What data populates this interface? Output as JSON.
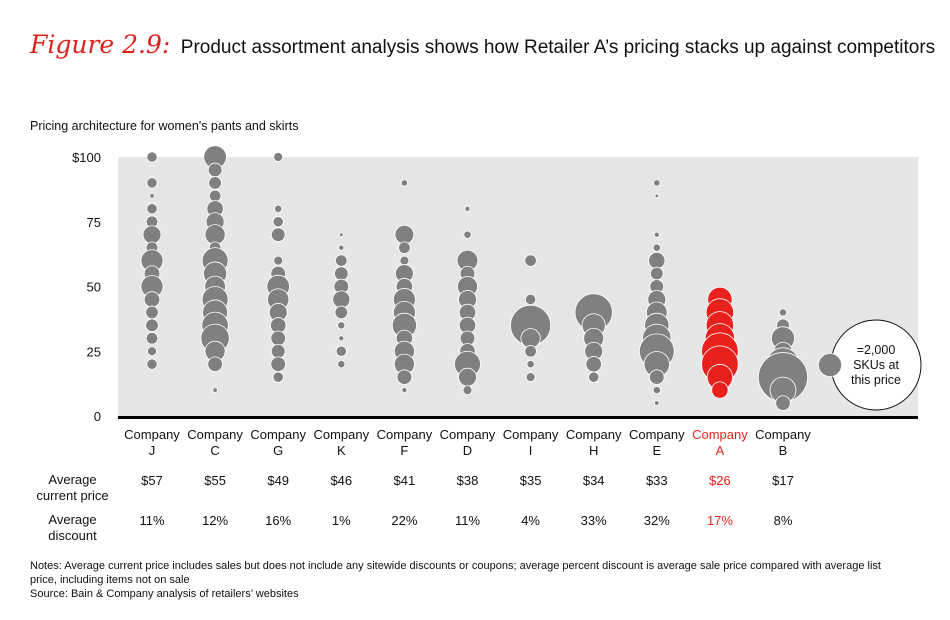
{
  "figure": {
    "label": "Figure 2.9:",
    "title": "Product assortment analysis shows how Retailer A’s pricing stacks up against competitors",
    "subtitle": "Pricing architecture for women's pants and skirts"
  },
  "rows": {
    "price_label": [
      "Average",
      "current price"
    ],
    "discount_label": [
      "Average",
      "discount"
    ]
  },
  "legend": {
    "lines": [
      "=2,000",
      "SKUs at",
      "this price"
    ]
  },
  "notes": {
    "line1": "Notes: Average current price includes sales but does not include any sitewide discounts or coupons; average percent discount is average sale price compared with average list",
    "line2": "price, including items not on sale",
    "source": "Source: Bain & Company analysis of retailers’ websites"
  },
  "colors": {
    "bubble": "#808080",
    "highlight": "#e8211c",
    "plot_bg": "#e6e6e6",
    "axis": "#000000"
  },
  "chart_data": {
    "type": "bubble",
    "y_ticks": [
      "$100",
      "75",
      "50",
      "25",
      "0"
    ],
    "y_tick_values": [
      100,
      75,
      50,
      25,
      0
    ],
    "ylim": [
      0,
      100
    ],
    "size_unit": "SKUs",
    "legend_bubble_skus": 2000,
    "companies": [
      {
        "name": [
          "Company",
          "J"
        ],
        "avg_price": "$57",
        "avg_discount": "11%",
        "highlight": false,
        "bubbles": [
          [
            100,
            400
          ],
          [
            90,
            400
          ],
          [
            85,
            80
          ],
          [
            80,
            400
          ],
          [
            75,
            500
          ],
          [
            70,
            1200
          ],
          [
            65,
            500
          ],
          [
            60,
            1800
          ],
          [
            55,
            900
          ],
          [
            50,
            1800
          ],
          [
            45,
            900
          ],
          [
            40,
            600
          ],
          [
            35,
            600
          ],
          [
            30,
            500
          ],
          [
            25,
            300
          ],
          [
            20,
            400
          ]
        ]
      },
      {
        "name": [
          "Company",
          "C"
        ],
        "avg_price": "$55",
        "avg_discount": "12%",
        "highlight": false,
        "bubbles": [
          [
            100,
            1900
          ],
          [
            95,
            700
          ],
          [
            90,
            600
          ],
          [
            85,
            500
          ],
          [
            80,
            1000
          ],
          [
            75,
            1200
          ],
          [
            70,
            1500
          ],
          [
            65,
            500
          ],
          [
            60,
            2500
          ],
          [
            55,
            2000
          ],
          [
            50,
            1600
          ],
          [
            45,
            2500
          ],
          [
            40,
            2300
          ],
          [
            35,
            2600
          ],
          [
            30,
            3000
          ],
          [
            25,
            1500
          ],
          [
            20,
            800
          ],
          [
            10,
            80
          ]
        ]
      },
      {
        "name": [
          "Company",
          "G"
        ],
        "avg_price": "$49",
        "avg_discount": "16%",
        "highlight": false,
        "bubbles": [
          [
            100,
            300
          ],
          [
            80,
            200
          ],
          [
            75,
            400
          ],
          [
            70,
            700
          ],
          [
            60,
            300
          ],
          [
            55,
            800
          ],
          [
            50,
            1900
          ],
          [
            45,
            1700
          ],
          [
            40,
            1200
          ],
          [
            35,
            900
          ],
          [
            30,
            800
          ],
          [
            25,
            700
          ],
          [
            20,
            800
          ],
          [
            15,
            400
          ]
        ]
      },
      {
        "name": [
          "Company",
          "K"
        ],
        "avg_price": "$46",
        "avg_discount": "1%",
        "highlight": false,
        "bubbles": [
          [
            70,
            50
          ],
          [
            65,
            100
          ],
          [
            60,
            500
          ],
          [
            55,
            700
          ],
          [
            50,
            800
          ],
          [
            45,
            1100
          ],
          [
            40,
            600
          ],
          [
            35,
            200
          ],
          [
            30,
            100
          ],
          [
            25,
            400
          ],
          [
            20,
            200
          ]
        ]
      },
      {
        "name": [
          "Company",
          "F"
        ],
        "avg_price": "$41",
        "avg_discount": "22%",
        "highlight": false,
        "bubbles": [
          [
            90,
            150
          ],
          [
            70,
            1300
          ],
          [
            65,
            500
          ],
          [
            60,
            300
          ],
          [
            55,
            1200
          ],
          [
            50,
            1000
          ],
          [
            45,
            1800
          ],
          [
            40,
            1800
          ],
          [
            35,
            2200
          ],
          [
            30,
            1000
          ],
          [
            25,
            1500
          ],
          [
            20,
            1500
          ],
          [
            15,
            800
          ],
          [
            10,
            100
          ]
        ]
      },
      {
        "name": [
          "Company",
          "D"
        ],
        "avg_price": "$38",
        "avg_discount": "11%",
        "highlight": false,
        "bubbles": [
          [
            80,
            100
          ],
          [
            70,
            200
          ],
          [
            60,
            1600
          ],
          [
            55,
            800
          ],
          [
            50,
            1500
          ],
          [
            45,
            1200
          ],
          [
            40,
            1000
          ],
          [
            35,
            1000
          ],
          [
            30,
            800
          ],
          [
            25,
            900
          ],
          [
            20,
            2500
          ],
          [
            15,
            1200
          ],
          [
            10,
            300
          ]
        ]
      },
      {
        "name": [
          "Company",
          "I"
        ],
        "avg_price": "$35",
        "avg_discount": "4%",
        "highlight": false,
        "bubbles": [
          [
            60,
            500
          ],
          [
            45,
            400
          ],
          [
            35,
            6000
          ],
          [
            30,
            1400
          ],
          [
            25,
            500
          ],
          [
            20,
            200
          ],
          [
            15,
            300
          ]
        ]
      },
      {
        "name": [
          "Company",
          "H"
        ],
        "avg_price": "$34",
        "avg_discount": "33%",
        "highlight": false,
        "bubbles": [
          [
            40,
            5200
          ],
          [
            35,
            2000
          ],
          [
            30,
            1500
          ],
          [
            25,
            1200
          ],
          [
            20,
            900
          ],
          [
            15,
            400
          ]
        ]
      },
      {
        "name": [
          "Company",
          "E"
        ],
        "avg_price": "$33",
        "avg_discount": "32%",
        "highlight": false,
        "bubbles": [
          [
            90,
            150
          ],
          [
            85,
            50
          ],
          [
            70,
            100
          ],
          [
            65,
            200
          ],
          [
            60,
            1000
          ],
          [
            55,
            600
          ],
          [
            50,
            700
          ],
          [
            45,
            1200
          ],
          [
            40,
            1600
          ],
          [
            35,
            2200
          ],
          [
            30,
            3000
          ],
          [
            25,
            4500
          ],
          [
            20,
            2400
          ],
          [
            15,
            800
          ],
          [
            10,
            200
          ],
          [
            5,
            80
          ]
        ]
      },
      {
        "name": [
          "Company",
          "A"
        ],
        "avg_price": "$26",
        "avg_discount": "17%",
        "highlight": true,
        "bubbles": [
          [
            45,
            2200
          ],
          [
            40,
            2800
          ],
          [
            35,
            2800
          ],
          [
            30,
            3200
          ],
          [
            25,
            5000
          ],
          [
            20,
            5000
          ],
          [
            15,
            2400
          ],
          [
            10,
            1000
          ]
        ]
      },
      {
        "name": [
          "Company",
          "B"
        ],
        "avg_price": "$17",
        "avg_discount": "8%",
        "highlight": false,
        "bubbles": [
          [
            40,
            200
          ],
          [
            35,
            600
          ],
          [
            30,
            2000
          ],
          [
            25,
            1200
          ],
          [
            20,
            4000
          ],
          [
            15,
            9000
          ],
          [
            10,
            2500
          ],
          [
            5,
            800
          ]
        ]
      }
    ]
  }
}
